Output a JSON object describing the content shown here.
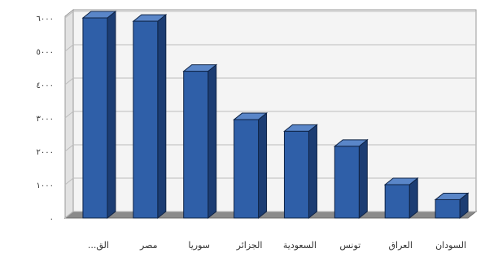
{
  "chart_data": {
    "type": "bar",
    "title": "",
    "xlabel": "",
    "ylabel": "",
    "categories": [
      "الق...",
      "مصر",
      "سوريا",
      "الجزائر",
      "السعودية",
      "تونس",
      "العراق",
      "السودان"
    ],
    "values": [
      6000,
      5900,
      4400,
      2950,
      2600,
      2150,
      1000,
      550
    ],
    "ylim": [
      0,
      6000
    ],
    "yticks": [
      0,
      1000,
      2000,
      3000,
      4000,
      5000,
      6000
    ],
    "ytick_labels": [
      "٠",
      "١٠٠٠",
      "٢٠٠٠",
      "٣٠٠٠",
      "٤٠٠٠",
      "٥٠٠٠",
      "٦٠٠٠"
    ],
    "grid": true,
    "legend": "none",
    "colors": {
      "bar_front": "#2f5fa8",
      "bar_side": "#1c3d73",
      "bar_top": "#5a86c8",
      "wall": "#f4f4f4",
      "floor": "#8a8a8a",
      "grid": "#bdbdbd"
    }
  }
}
